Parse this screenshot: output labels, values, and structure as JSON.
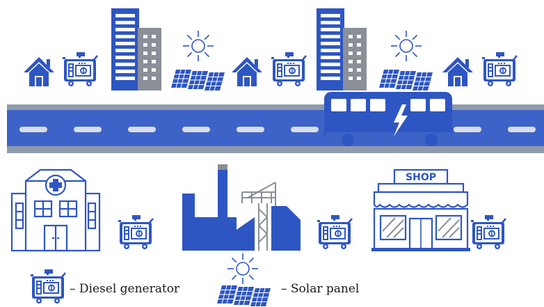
{
  "colors": {
    "primary": "#2e56c2",
    "road": "#3d63c9",
    "road_edge": "#8f9bab",
    "building_gray": "#8a8f98",
    "background": "#ffffff"
  },
  "shop": {
    "sign": "SHOP"
  },
  "legend": {
    "generator_label": "– Diesel generator",
    "solar_label": "– Solar panel"
  },
  "icons": [
    "house-icon",
    "diesel-generator-icon",
    "office-building-icon",
    "sun-icon",
    "solar-panel-icon",
    "electric-bus-icon",
    "lightning-bolt-icon",
    "hospital-icon",
    "factory-icon",
    "shop-icon"
  ]
}
